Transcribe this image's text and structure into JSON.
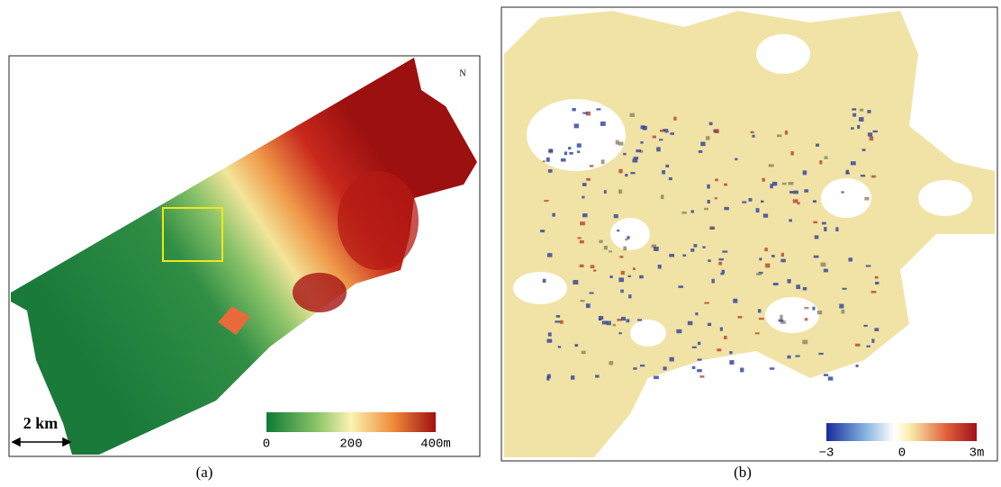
{
  "panels": [
    {
      "caption": "(a)",
      "scale_bar": "2 km",
      "north_label": "N",
      "colorbar": {
        "labels": [
          "0",
          "200",
          "400m"
        ]
      }
    },
    {
      "caption": "(b)",
      "colorbar": {
        "labels": [
          "−3",
          "0",
          "3m"
        ]
      }
    }
  ]
}
